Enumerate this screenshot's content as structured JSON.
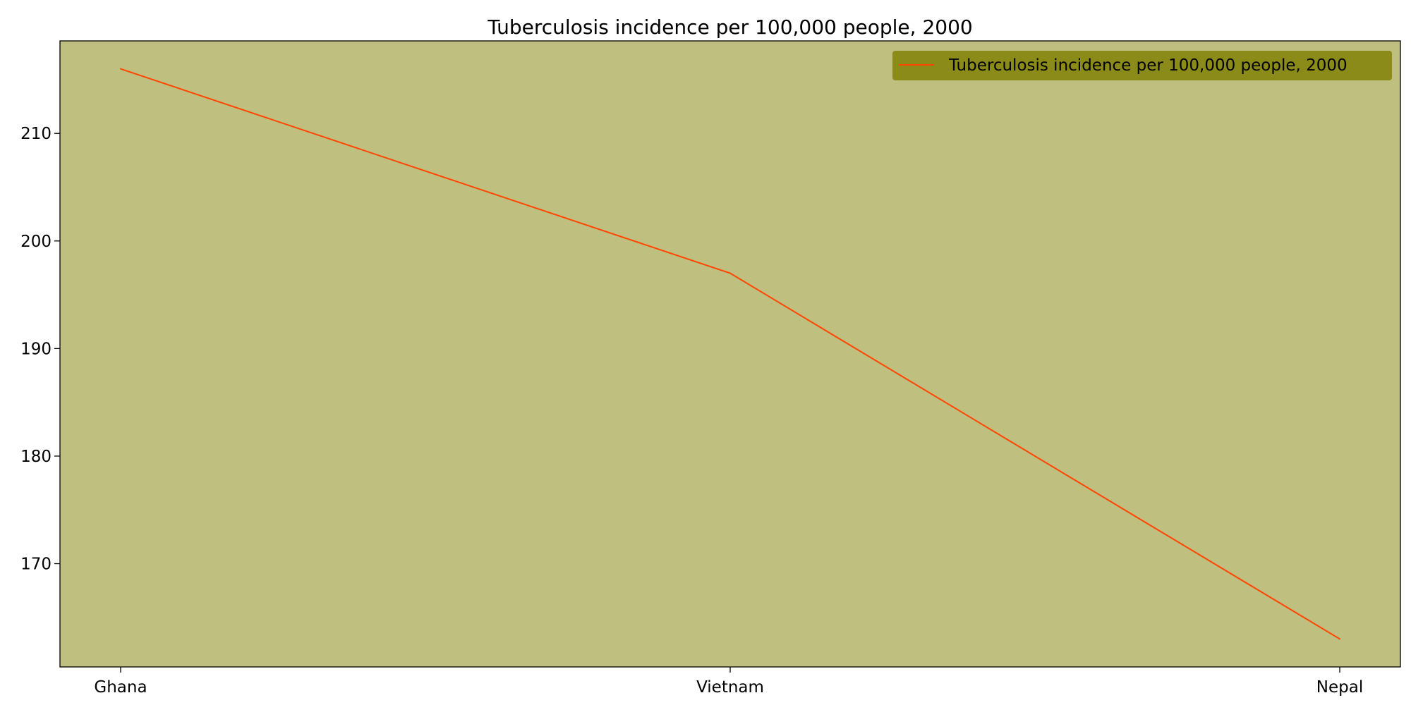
{
  "colors": {
    "plot_background": "#bfbf80",
    "line": "#ff4500",
    "legend_background": "#8b8b1a",
    "axis": "#000000"
  },
  "chart_data": {
    "type": "line",
    "title": "Tuberculosis incidence per 100,000 people, 2000",
    "xlabel": "",
    "ylabel": "",
    "categories": [
      "Ghana",
      "Vietnam",
      "Nepal"
    ],
    "series": [
      {
        "name": "Tuberculosis incidence per 100,000 people, 2000",
        "values": [
          216,
          197,
          163
        ]
      }
    ],
    "ylim": [
      160.4,
      218.6
    ],
    "yticks": [
      "170",
      "180",
      "190",
      "200",
      "210"
    ],
    "ytick_values": [
      170,
      180,
      190,
      200,
      210
    ],
    "grid": false,
    "legend_position": "top-right"
  }
}
